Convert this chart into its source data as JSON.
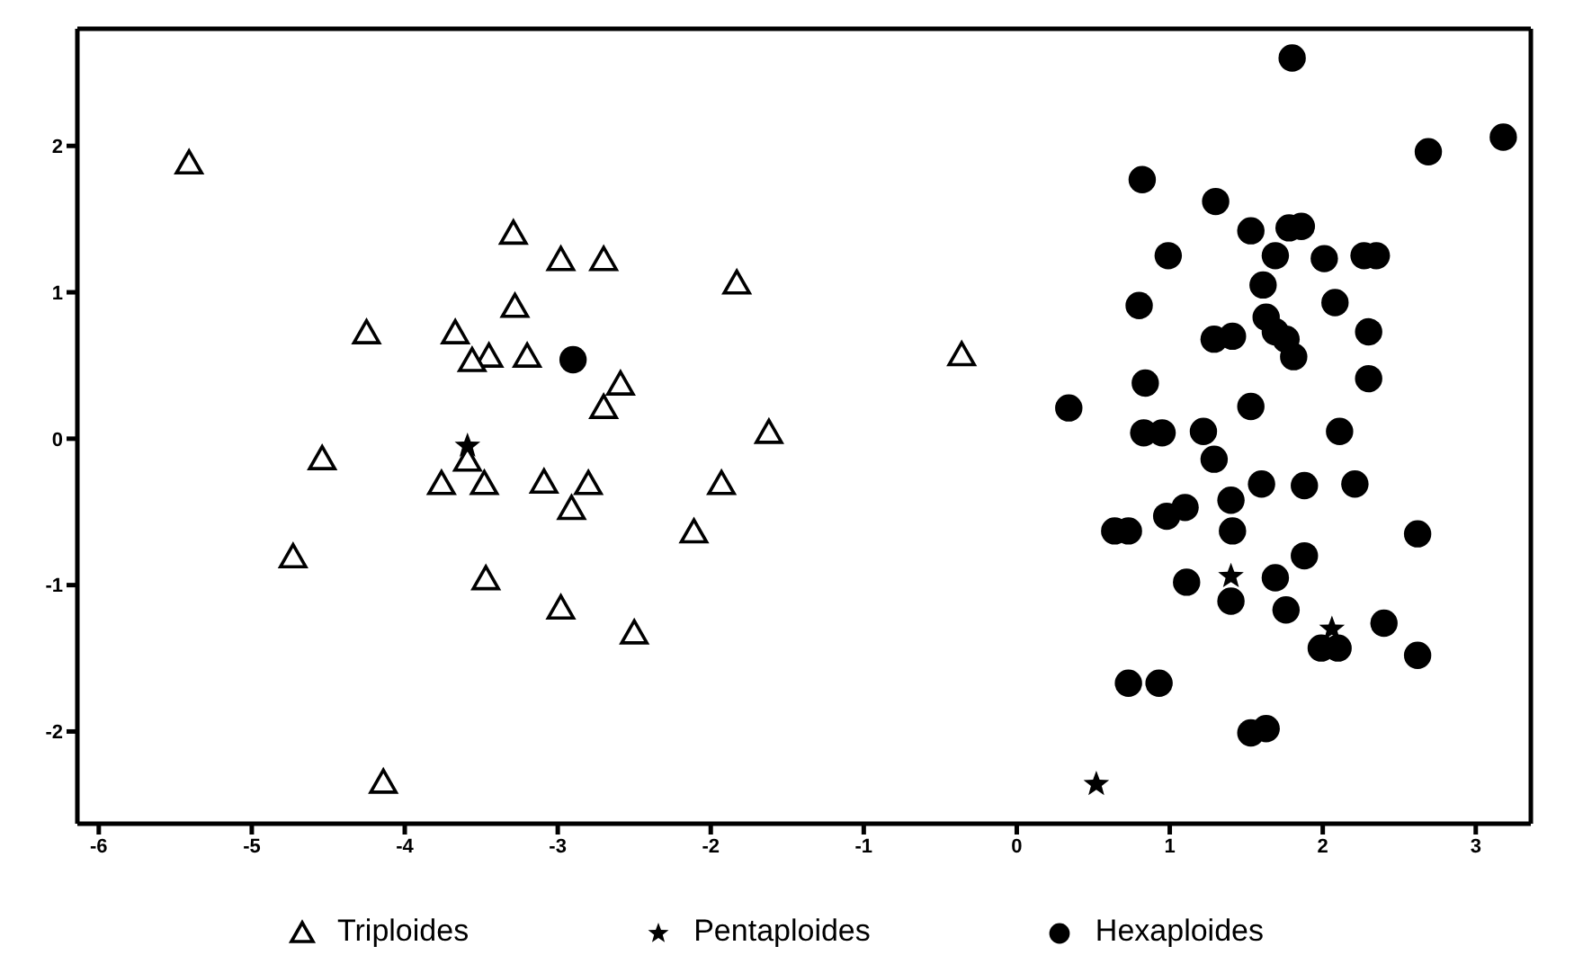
{
  "chart_data": {
    "type": "scatter",
    "xlim": [
      -6.14,
      3.36
    ],
    "ylim": [
      -2.63,
      2.8
    ],
    "xticks": [
      -6,
      -5,
      -4,
      -3,
      -2,
      -1,
      0,
      1,
      2,
      3
    ],
    "yticks": [
      -2,
      -1,
      0,
      1,
      2
    ],
    "grid": false,
    "legend": "bottom",
    "series": [
      {
        "name": "Triploides",
        "color": "#000000",
        "marker": "triangle",
        "x": [
          -5.41,
          -3.29,
          -2.98,
          -2.7,
          -1.83,
          -3.28,
          -4.25,
          -3.67,
          -3.45,
          -3.2,
          -2.59,
          -2.7,
          -1.62,
          -4.54,
          -3.59,
          -3.76,
          -3.48,
          -3.09,
          -2.8,
          -2.91,
          -1.93,
          -2.11,
          -4.73,
          -3.47,
          -2.98,
          -2.5,
          -4.14,
          -3.56,
          -0.36
        ],
        "values": [
          1.88,
          1.4,
          1.22,
          1.22,
          1.06,
          0.9,
          0.72,
          0.72,
          0.56,
          0.56,
          0.37,
          0.21,
          0.04,
          -0.14,
          -0.15,
          -0.31,
          -0.31,
          -0.3,
          -0.31,
          -0.48,
          -0.31,
          -0.64,
          -0.81,
          -0.96,
          -1.16,
          -1.33,
          -2.35,
          0.53,
          0.57
        ]
      },
      {
        "name": "Pentaploides",
        "color": "#000000",
        "marker": "star",
        "x": [
          -3.59,
          0.52,
          1.4,
          2.06
        ],
        "values": [
          -0.05,
          -2.36,
          -0.94,
          -1.3
        ]
      },
      {
        "name": "Hexaploides",
        "color": "#000000",
        "marker": "circle",
        "x": [
          -2.9,
          1.8,
          2.69,
          3.18,
          0.82,
          1.3,
          1.53,
          1.78,
          1.86,
          0.99,
          1.69,
          2.01,
          2.27,
          2.35,
          1.61,
          0.8,
          2.08,
          1.63,
          1.69,
          1.76,
          1.29,
          1.41,
          1.81,
          2.3,
          2.3,
          0.84,
          0.34,
          1.53,
          0.83,
          0.95,
          1.22,
          1.29,
          2.11,
          1.6,
          1.88,
          2.21,
          1.4,
          0.98,
          1.1,
          1.41,
          0.64,
          0.73,
          2.62,
          1.88,
          1.11,
          1.69,
          1.4,
          1.76,
          2.4,
          1.99,
          2.1,
          2.62,
          0.73,
          0.93,
          1.53,
          1.63
        ],
        "values": [
          0.54,
          2.6,
          1.96,
          2.06,
          1.77,
          1.62,
          1.42,
          1.44,
          1.45,
          1.25,
          1.25,
          1.23,
          1.25,
          1.25,
          1.05,
          0.91,
          0.93,
          0.83,
          0.73,
          0.68,
          0.68,
          0.7,
          0.56,
          0.73,
          0.41,
          0.38,
          0.21,
          0.22,
          0.04,
          0.04,
          0.05,
          -0.14,
          0.05,
          -0.31,
          -0.32,
          -0.31,
          -0.42,
          -0.53,
          -0.47,
          -0.63,
          -0.63,
          -0.63,
          -0.65,
          -0.8,
          -0.98,
          -0.95,
          -1.11,
          -1.17,
          -1.26,
          -1.43,
          -1.43,
          -1.48,
          -1.67,
          -1.67,
          -2.01,
          -1.98
        ]
      }
    ]
  }
}
